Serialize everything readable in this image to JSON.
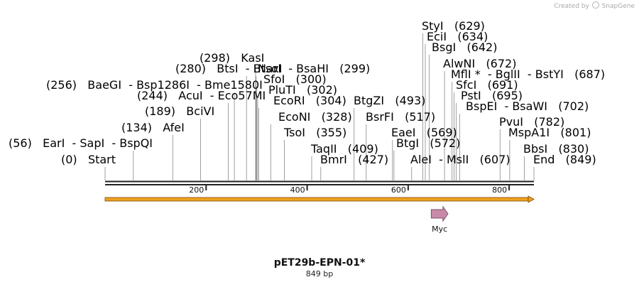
{
  "header": {
    "credit_text": "Created by",
    "brand": "SnapGene"
  },
  "plasmid": {
    "name": "pET29b-EPN-01*",
    "length_label": "849 bp",
    "length_bp": 849
  },
  "axis": {
    "ticks": [
      200,
      400,
      600,
      800
    ]
  },
  "colors": {
    "orf": "#f0a020",
    "myc_fill": "#c98aa8",
    "myc_stroke": "#7a5068",
    "leader": "#888888",
    "backbone": "#222222"
  },
  "features": [
    {
      "name": "Myc",
      "start": 650,
      "end": 683
    }
  ],
  "sites": [
    {
      "enzymes": [
        "Start"
      ],
      "pos_label": "(0)",
      "bp": 0,
      "italic": true
    },
    {
      "enzymes": [
        "EarI",
        "SapI",
        "BspQI"
      ],
      "pos_label": "(56)",
      "bp": 56
    },
    {
      "enzymes": [
        "AfeI"
      ],
      "pos_label": "(134)",
      "bp": 134
    },
    {
      "enzymes": [
        "BciVI"
      ],
      "pos_label": "(189)",
      "bp": 189
    },
    {
      "enzymes": [
        "AcuI",
        "Eco57MI"
      ],
      "pos_label": "(244)",
      "bp": 244
    },
    {
      "enzymes": [
        "BaeGI",
        "Bsp1286I",
        "Bme1580I"
      ],
      "pos_label": "(256)",
      "bp": 256
    },
    {
      "enzymes": [
        "BtsI",
        "BtsαI"
      ],
      "pos_label": "(280)",
      "bp": 280
    },
    {
      "enzymes": [
        "KasI"
      ],
      "pos_label": "(298)",
      "bp": 298
    },
    {
      "enzymes": [
        "NarI",
        "BsaHI"
      ],
      "pos_label": "(299)",
      "bp": 299
    },
    {
      "enzymes": [
        "SfoI"
      ],
      "pos_label": "(300)",
      "bp": 300
    },
    {
      "enzymes": [
        "PluTI"
      ],
      "pos_label": "(302)",
      "bp": 302
    },
    {
      "enzymes": [
        "EcoRI"
      ],
      "pos_label": "(304)",
      "bp": 304
    },
    {
      "enzymes": [
        "EcoNI"
      ],
      "pos_label": "(328)",
      "bp": 328
    },
    {
      "enzymes": [
        "TsoI"
      ],
      "pos_label": "(355)",
      "bp": 355
    },
    {
      "enzymes": [
        "TaqII"
      ],
      "pos_label": "(409)",
      "bp": 409
    },
    {
      "enzymes": [
        "BmrI"
      ],
      "pos_label": "(427)",
      "bp": 427
    },
    {
      "enzymes": [
        "BtgZI"
      ],
      "pos_label": "(493)",
      "bp": 493
    },
    {
      "enzymes": [
        "BsrFI"
      ],
      "pos_label": "(517)",
      "bp": 517
    },
    {
      "enzymes": [
        "EaeI"
      ],
      "pos_label": "(569)",
      "bp": 569
    },
    {
      "enzymes": [
        "BtgI"
      ],
      "pos_label": "(572)",
      "bp": 572
    },
    {
      "enzymes": [
        "AleI",
        "MslI"
      ],
      "pos_label": "(607)",
      "bp": 607
    },
    {
      "enzymes": [
        "StyI"
      ],
      "pos_label": "(629)",
      "bp": 629
    },
    {
      "enzymes": [
        "EciI"
      ],
      "pos_label": "(634)",
      "bp": 634
    },
    {
      "enzymes": [
        "BsgI"
      ],
      "pos_label": "(642)",
      "bp": 642
    },
    {
      "enzymes": [
        "AlwNI"
      ],
      "pos_label": "(672)",
      "bp": 672
    },
    {
      "enzymes": [
        "MflI *",
        "BglII",
        "BstYI"
      ],
      "pos_label": "(687)",
      "bp": 687
    },
    {
      "enzymes": [
        "SfcI"
      ],
      "pos_label": "(691)",
      "bp": 691
    },
    {
      "enzymes": [
        "PstI"
      ],
      "pos_label": "(695)",
      "bp": 695
    },
    {
      "enzymes": [
        "BspEI",
        "BsaWI"
      ],
      "pos_label": "(702)",
      "bp": 702
    },
    {
      "enzymes": [
        "PvuI"
      ],
      "pos_label": "(782)",
      "bp": 782
    },
    {
      "enzymes": [
        "MspA1I"
      ],
      "pos_label": "(801)",
      "bp": 801
    },
    {
      "enzymes": [
        "BbsI"
      ],
      "pos_label": "(830)",
      "bp": 830
    },
    {
      "enzymes": [
        "End"
      ],
      "pos_label": "(849)",
      "bp": 849,
      "italic": true
    }
  ]
}
